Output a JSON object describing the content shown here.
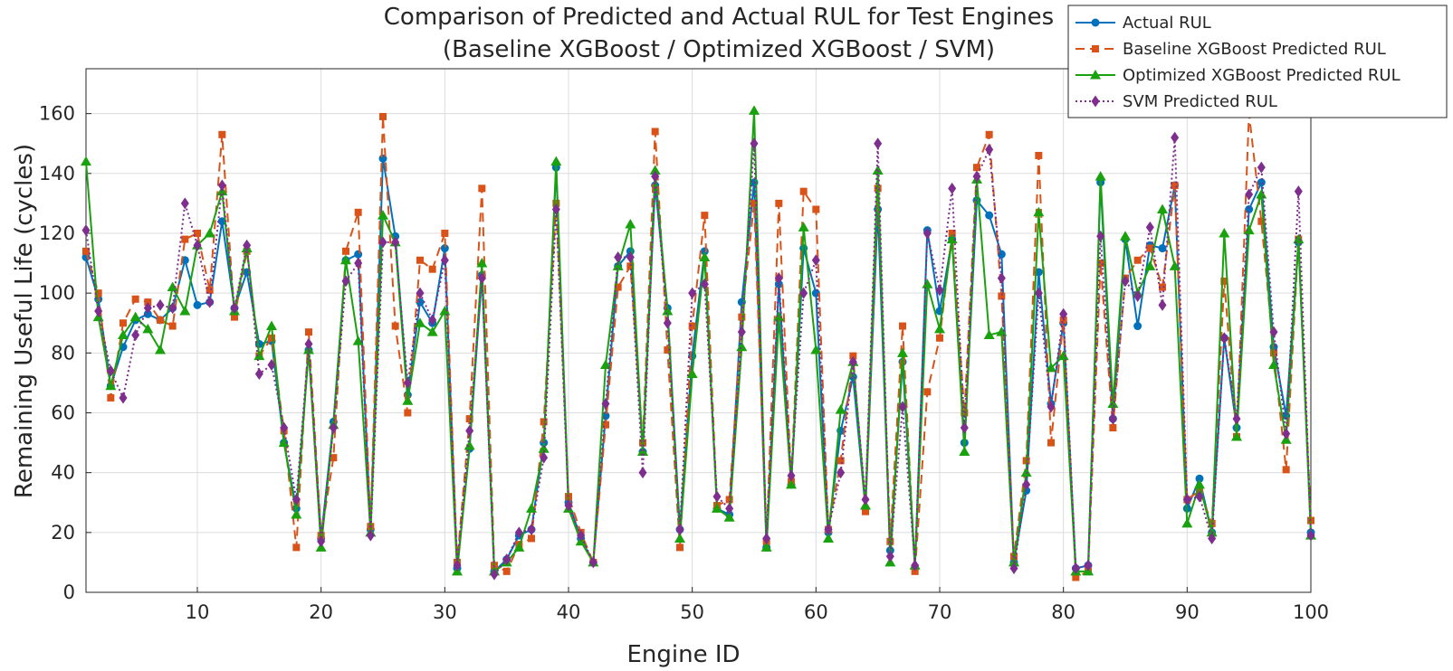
{
  "chart_data": {
    "type": "line",
    "title": [
      "Comparison of Predicted and Actual RUL for Test Engines",
      "(Baseline XGBoost / Optimized XGBoost / SVM)"
    ],
    "xlabel": "Engine ID",
    "ylabel": "Remaining Useful Life (cycles)",
    "xlim": [
      1,
      100
    ],
    "ylim": [
      0,
      175
    ],
    "xticks": [
      10,
      20,
      30,
      40,
      50,
      60,
      70,
      80,
      90,
      100
    ],
    "yticks": [
      0,
      20,
      40,
      60,
      80,
      100,
      120,
      140,
      160
    ],
    "grid": true,
    "legend_position": "top-right",
    "x": [
      1,
      2,
      3,
      4,
      5,
      6,
      7,
      8,
      9,
      10,
      11,
      12,
      13,
      14,
      15,
      16,
      17,
      18,
      19,
      20,
      21,
      22,
      23,
      24,
      25,
      26,
      27,
      28,
      29,
      30,
      31,
      32,
      33,
      34,
      35,
      36,
      37,
      38,
      39,
      40,
      41,
      42,
      43,
      44,
      45,
      46,
      47,
      48,
      49,
      50,
      51,
      52,
      53,
      54,
      55,
      56,
      57,
      58,
      59,
      60,
      61,
      62,
      63,
      64,
      65,
      66,
      67,
      68,
      69,
      70,
      71,
      72,
      73,
      74,
      75,
      76,
      77,
      78,
      79,
      80,
      81,
      82,
      83,
      84,
      85,
      86,
      87,
      88,
      89,
      90,
      91,
      92,
      93,
      94,
      95,
      96,
      97,
      98,
      99,
      100
    ],
    "series": [
      {
        "name": "Actual RUL",
        "color": "#0072BD",
        "dash": "solid",
        "marker": "circle",
        "values": [
          112,
          98,
          69,
          82,
          91,
          93,
          91,
          95,
          111,
          96,
          97,
          124,
          95,
          107,
          83,
          84,
          50,
          28,
          81,
          18,
          57,
          111,
          113,
          21,
          145,
          119,
          66,
          97,
          90,
          115,
          8,
          48,
          106,
          7,
          11,
          19,
          21,
          50,
          142,
          30,
          18,
          10,
          59,
          109,
          114,
          47,
          136,
          95,
          21,
          79,
          114,
          28,
          26,
          97,
          137,
          15,
          103,
          36,
          115,
          100,
          20,
          54,
          72,
          28,
          128,
          14,
          77,
          8,
          121,
          94,
          118,
          50,
          131,
          126,
          113,
          10,
          34,
          107,
          63,
          90,
          8,
          9,
          137,
          58,
          118,
          89,
          116,
          115,
          136,
          28,
          38,
          20,
          85,
          55,
          128,
          137,
          82,
          59,
          117,
          20
        ]
      },
      {
        "name": "Baseline XGBoost Predicted RUL",
        "color": "#D95319",
        "dash": "dashed",
        "marker": "square",
        "values": [
          114,
          100,
          65,
          90,
          98,
          97,
          91,
          89,
          118,
          120,
          101,
          153,
          92,
          114,
          79,
          85,
          54,
          15,
          87,
          19,
          45,
          114,
          127,
          22,
          159,
          89,
          60,
          111,
          108,
          120,
          10,
          58,
          135,
          9,
          7,
          16,
          18,
          57,
          130,
          32,
          20,
          10,
          56,
          102,
          109,
          50,
          154,
          81,
          15,
          89,
          126,
          29,
          31,
          92,
          130,
          17,
          130,
          37,
          134,
          128,
          21,
          44,
          79,
          27,
          135,
          17,
          89,
          7,
          67,
          85,
          120,
          60,
          142,
          153,
          99,
          12,
          44,
          146,
          50,
          91,
          5,
          7,
          110,
          55,
          105,
          111,
          115,
          102,
          136,
          31,
          34,
          23,
          104,
          52,
          160,
          124,
          80,
          41,
          118,
          24
        ]
      },
      {
        "name": "Optimized XGBoost Predicted RUL",
        "color": "#1AA10E",
        "dash": "solid",
        "marker": "triangle",
        "values": [
          144,
          92,
          69,
          86,
          92,
          88,
          81,
          102,
          94,
          116,
          120,
          134,
          94,
          115,
          79,
          89,
          50,
          26,
          81,
          15,
          56,
          111,
          84,
          20,
          126,
          117,
          64,
          90,
          87,
          94,
          7,
          49,
          110,
          7,
          10,
          15,
          28,
          48,
          144,
          28,
          17,
          10,
          76,
          109,
          123,
          47,
          141,
          94,
          18,
          73,
          112,
          28,
          25,
          82,
          161,
          15,
          92,
          36,
          122,
          81,
          18,
          61,
          77,
          29,
          141,
          10,
          80,
          9,
          103,
          88,
          118,
          47,
          138,
          86,
          87,
          10,
          40,
          127,
          75,
          79,
          7,
          7,
          139,
          63,
          119,
          100,
          109,
          128,
          109,
          23,
          36,
          20,
          120,
          52,
          121,
          133,
          76,
          51,
          118,
          19
        ]
      },
      {
        "name": "SVM Predicted RUL",
        "color": "#7E2F8E",
        "dash": "dotted",
        "marker": "diamond",
        "values": [
          121,
          94,
          74,
          65,
          86,
          95,
          96,
          95,
          130,
          116,
          97,
          136,
          95,
          116,
          73,
          76,
          55,
          31,
          83,
          17,
          55,
          104,
          110,
          19,
          117,
          117,
          70,
          100,
          91,
          111,
          9,
          54,
          105,
          6,
          11,
          20,
          21,
          45,
          128,
          29,
          19,
          10,
          63,
          112,
          112,
          40,
          139,
          90,
          21,
          100,
          103,
          32,
          28,
          87,
          150,
          18,
          105,
          39,
          100,
          111,
          21,
          40,
          77,
          31,
          150,
          12,
          62,
          9,
          120,
          101,
          135,
          55,
          139,
          148,
          105,
          8,
          36,
          100,
          62,
          93,
          8,
          9,
          119,
          58,
          104,
          99,
          122,
          96,
          152,
          31,
          32,
          18,
          85,
          58,
          133,
          142,
          87,
          53,
          134,
          19
        ]
      }
    ]
  }
}
